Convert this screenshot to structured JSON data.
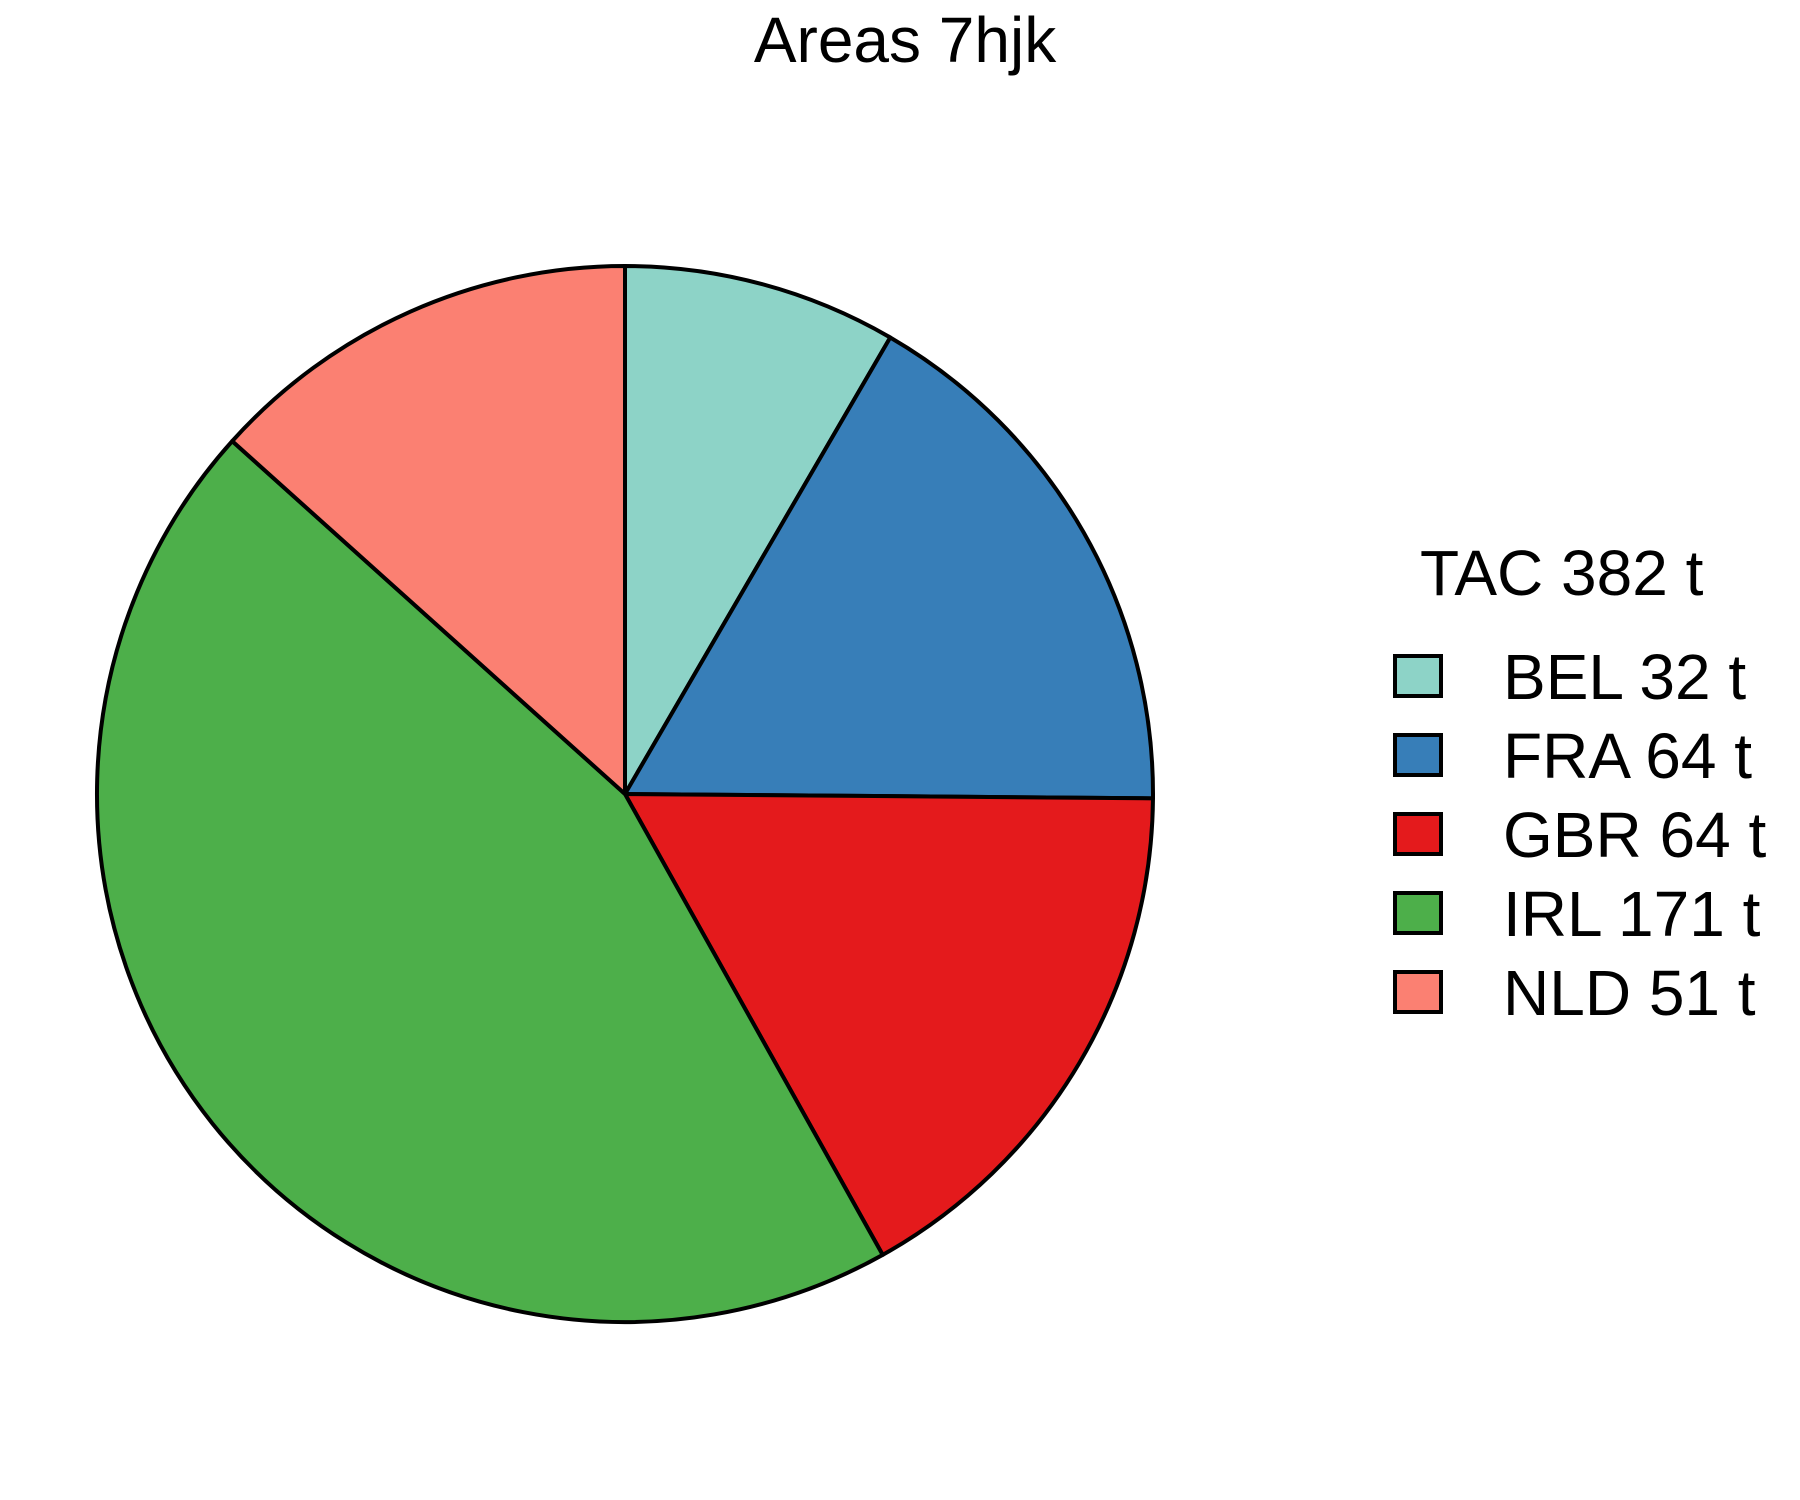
{
  "chart_data": {
    "type": "pie",
    "title": "Areas 7hjk",
    "legend_title": "TAC 382 t",
    "legend_position": "right",
    "start_angle": "12 o'clock",
    "direction": "clockwise",
    "slices": [
      {
        "category": "BEL",
        "value": 32,
        "label": "BEL 32 t",
        "color": "#8DD3C7"
      },
      {
        "category": "FRA",
        "value": 64,
        "label": "FRA 64 t",
        "color": "#377EB8"
      },
      {
        "category": "GBR",
        "value": 64,
        "label": "GBR 64 t",
        "color": "#E41A1C"
      },
      {
        "category": "IRL",
        "value": 171,
        "label": "IRL 171 t",
        "color": "#4DAF4A"
      },
      {
        "category": "NLD",
        "value": 51,
        "label": "NLD 51 t",
        "color": "#FB8072"
      }
    ],
    "outline_color": "#000000"
  }
}
